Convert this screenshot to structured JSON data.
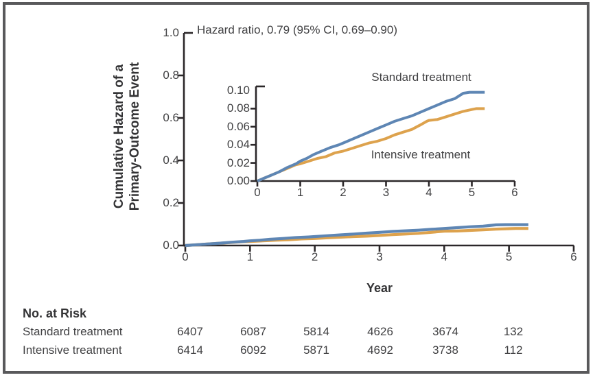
{
  "colors": {
    "frame_border": "#59595b",
    "axis": "#2b2729",
    "text": "#414143",
    "standard_line": "#5e86b4",
    "intensive_line": "#dda24d"
  },
  "chart_data": {
    "type": "line",
    "annotation": "Hazard ratio, 0.79 (95% CI, 0.69–0.90)",
    "xlabel": "Year",
    "ylabel_lines": [
      "Cumulative Hazard of a",
      "Primary-Outcome Event"
    ],
    "main_axis": {
      "xlim": [
        0,
        6
      ],
      "ylim": [
        0,
        1.0
      ],
      "x_ticks": [
        "0",
        "1",
        "2",
        "3",
        "4",
        "5",
        "6"
      ],
      "y_ticks": [
        "1.0",
        "0.8",
        "0.6",
        "0.4",
        "0.2",
        "0.0"
      ]
    },
    "inset_axis": {
      "xlim": [
        0,
        6
      ],
      "ylim": [
        0,
        0.1
      ],
      "x_ticks": [
        "0",
        "1",
        "2",
        "3",
        "4",
        "5",
        "6"
      ],
      "y_ticks": [
        "0.10",
        "0.08",
        "0.06",
        "0.04",
        "0.02",
        "0.00"
      ]
    },
    "series": [
      {
        "name": "Standard treatment",
        "color": "#5e86b4",
        "points": [
          [
            0,
            0
          ],
          [
            0.15,
            0.003
          ],
          [
            0.3,
            0.006
          ],
          [
            0.5,
            0.01
          ],
          [
            0.7,
            0.015
          ],
          [
            0.9,
            0.019
          ],
          [
            1.0,
            0.022
          ],
          [
            1.15,
            0.025
          ],
          [
            1.3,
            0.029
          ],
          [
            1.5,
            0.033
          ],
          [
            1.7,
            0.037
          ],
          [
            1.9,
            0.04
          ],
          [
            2.0,
            0.042
          ],
          [
            2.2,
            0.046
          ],
          [
            2.4,
            0.05
          ],
          [
            2.6,
            0.054
          ],
          [
            2.8,
            0.058
          ],
          [
            3.0,
            0.062
          ],
          [
            3.2,
            0.066
          ],
          [
            3.4,
            0.069
          ],
          [
            3.6,
            0.072
          ],
          [
            3.8,
            0.076
          ],
          [
            4.0,
            0.08
          ],
          [
            4.2,
            0.084
          ],
          [
            4.4,
            0.088
          ],
          [
            4.6,
            0.091
          ],
          [
            4.7,
            0.094
          ],
          [
            4.8,
            0.097
          ],
          [
            4.95,
            0.098
          ],
          [
            5.3,
            0.098
          ]
        ]
      },
      {
        "name": "Intensive treatment",
        "color": "#dda24d",
        "points": [
          [
            0,
            0
          ],
          [
            0.15,
            0.003
          ],
          [
            0.3,
            0.006
          ],
          [
            0.5,
            0.01
          ],
          [
            0.7,
            0.014
          ],
          [
            0.9,
            0.018
          ],
          [
            1.0,
            0.019
          ],
          [
            1.2,
            0.022
          ],
          [
            1.4,
            0.025
          ],
          [
            1.6,
            0.027
          ],
          [
            1.8,
            0.031
          ],
          [
            2.0,
            0.033
          ],
          [
            2.2,
            0.036
          ],
          [
            2.4,
            0.039
          ],
          [
            2.6,
            0.042
          ],
          [
            2.8,
            0.044
          ],
          [
            3.0,
            0.047
          ],
          [
            3.2,
            0.051
          ],
          [
            3.4,
            0.054
          ],
          [
            3.6,
            0.057
          ],
          [
            3.8,
            0.062
          ],
          [
            3.95,
            0.066
          ],
          [
            4.0,
            0.067
          ],
          [
            4.2,
            0.068
          ],
          [
            4.4,
            0.071
          ],
          [
            4.6,
            0.074
          ],
          [
            4.8,
            0.077
          ],
          [
            5.0,
            0.079
          ],
          [
            5.1,
            0.08
          ],
          [
            5.3,
            0.08
          ]
        ]
      }
    ]
  },
  "risk_table": {
    "title": "No. at Risk",
    "rows": [
      {
        "label": "Standard treatment",
        "values": [
          "6407",
          "6087",
          "5814",
          "4626",
          "3674",
          "132"
        ]
      },
      {
        "label": "Intensive treatment",
        "values": [
          "6414",
          "6092",
          "5871",
          "4692",
          "3738",
          "112"
        ]
      }
    ]
  }
}
